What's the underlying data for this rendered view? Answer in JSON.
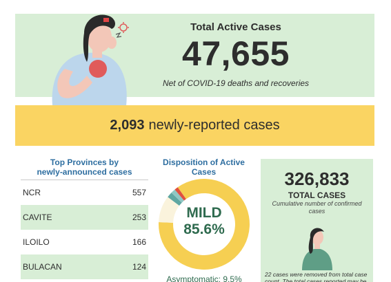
{
  "hero": {
    "title": "Total Active Cases",
    "value": "47,655",
    "subtitle": "Net of COVID-19 deaths and recoveries"
  },
  "banner": {
    "count": "2,093",
    "label": "newly-reported cases"
  },
  "provinces": {
    "title_line1": "Top Provinces by",
    "title_line2": "newly-announced cases",
    "rows": [
      {
        "name": "NCR",
        "count": "557"
      },
      {
        "name": "CAVITE",
        "count": "253"
      },
      {
        "name": "ILOILO",
        "count": "166"
      },
      {
        "name": "BULACAN",
        "count": "124"
      }
    ]
  },
  "disposition": {
    "title": "Disposition of Active Cases",
    "main_label": "MILD",
    "main_value": "85.6%",
    "asymptomatic": "Asymptomatic: 9.5%"
  },
  "chart_data": {
    "type": "pie",
    "title": "Disposition of Active Cases",
    "series": [
      {
        "label": "MILD",
        "value": 85.6,
        "color": "#f6cf52"
      },
      {
        "label": "Asymptomatic",
        "value": 9.5,
        "color": "#faf3dc"
      },
      {
        "value": 2.0,
        "color": "#5fa7a2"
      },
      {
        "value": 1.6,
        "color": "#8fc7c3"
      },
      {
        "value": 1.3,
        "color": "#e0513f"
      }
    ]
  },
  "total": {
    "value": "326,833",
    "label": "TOTAL CASES",
    "description": "Cumulative number of confirmed cases",
    "note": "22 cases were removed from total case count. The total cases reported may be"
  },
  "colors": {
    "green_panel": "#d8eed6",
    "yellow_banner": "#fad462",
    "title_blue": "#2e6ea0",
    "dark_green_text": "#2f6b4f"
  }
}
